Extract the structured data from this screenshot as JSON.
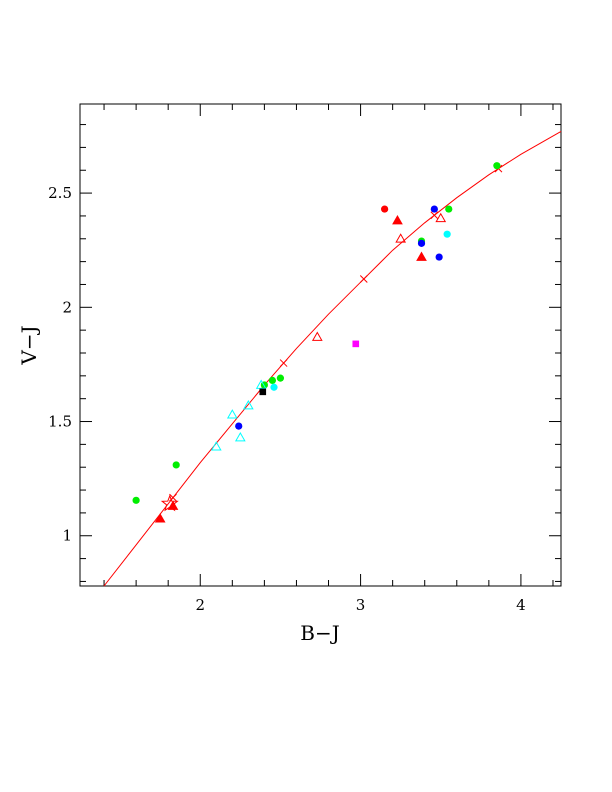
{
  "chart_data": {
    "type": "scatter",
    "title": "",
    "xlabel": "B−J",
    "ylabel": "V−J",
    "xlim": [
      1.25,
      4.25
    ],
    "ylim": [
      0.78,
      2.89
    ],
    "grid": false,
    "legend": "none",
    "x_ticks": [
      {
        "value": 2,
        "label": "2"
      },
      {
        "value": 3,
        "label": "3"
      },
      {
        "value": 4,
        "label": "4"
      }
    ],
    "y_ticks": [
      {
        "value": 1,
        "label": "1"
      },
      {
        "value": 1.5,
        "label": "1.5"
      },
      {
        "value": 2,
        "label": "2"
      },
      {
        "value": 2.5,
        "label": "2.5"
      }
    ],
    "curve": {
      "color": "#ff0000",
      "x": [
        1.4,
        1.6,
        1.8,
        2.0,
        2.2,
        2.4,
        2.6,
        2.8,
        3.0,
        3.2,
        3.4,
        3.6,
        3.8,
        4.0,
        4.25
      ],
      "y": [
        0.78,
        0.96,
        1.14,
        1.32,
        1.49,
        1.66,
        1.82,
        1.97,
        2.11,
        2.25,
        2.37,
        2.48,
        2.58,
        2.67,
        2.77
      ],
      "cross_markers_x": [
        1.83,
        2.52,
        3.02,
        3.46,
        3.86
      ]
    },
    "series": [
      {
        "marker": "circle",
        "color": "#00ee00",
        "points": [
          [
            1.6,
            1.155
          ],
          [
            1.85,
            1.31
          ],
          [
            2.4,
            1.66
          ],
          [
            2.45,
            1.68
          ],
          [
            2.5,
            1.69
          ],
          [
            3.38,
            2.29
          ],
          [
            3.55,
            2.43
          ],
          [
            3.85,
            2.62
          ]
        ]
      },
      {
        "marker": "circle",
        "color": "#0000ff",
        "points": [
          [
            2.24,
            1.48
          ],
          [
            3.38,
            2.28
          ],
          [
            3.46,
            2.43
          ],
          [
            3.49,
            2.22
          ]
        ]
      },
      {
        "marker": "circle",
        "color": "#00ffff",
        "points": [
          [
            2.46,
            1.65
          ],
          [
            3.54,
            2.32
          ]
        ]
      },
      {
        "marker": "circle",
        "color": "#ff0000",
        "points": [
          [
            3.15,
            2.43
          ]
        ]
      },
      {
        "marker": "triangle",
        "color": "#ff0000",
        "points": [
          [
            1.75,
            1.075
          ],
          [
            1.83,
            1.13
          ],
          [
            3.23,
            2.38
          ],
          [
            3.38,
            2.22
          ]
        ]
      },
      {
        "marker": "triangle-open",
        "color": "#ff0000",
        "points": [
          [
            2.73,
            1.87
          ],
          [
            3.25,
            2.3
          ],
          [
            3.5,
            2.39
          ]
        ]
      },
      {
        "marker": "triangle-open",
        "color": "#00ffff",
        "points": [
          [
            2.1,
            1.39
          ],
          [
            2.2,
            1.53
          ],
          [
            2.25,
            1.43
          ],
          [
            2.3,
            1.57
          ],
          [
            2.38,
            1.66
          ]
        ]
      },
      {
        "marker": "square",
        "color": "#000000",
        "points": [
          [
            2.39,
            1.63
          ]
        ]
      },
      {
        "marker": "square",
        "color": "#ff00ff",
        "points": [
          [
            2.97,
            1.84
          ]
        ]
      },
      {
        "marker": "star-open",
        "color": "#ff0000",
        "points": [
          [
            1.81,
            1.14
          ]
        ]
      }
    ]
  }
}
